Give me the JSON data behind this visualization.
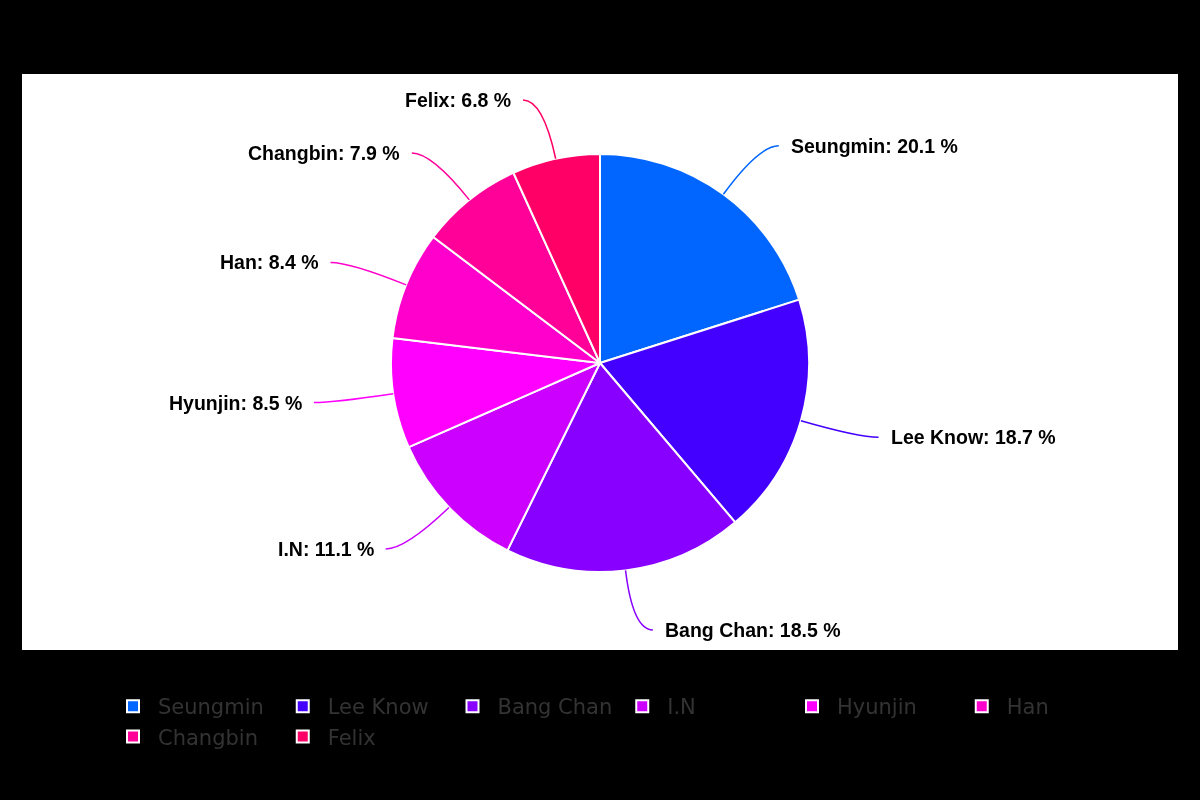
{
  "chart_data": {
    "type": "pie",
    "categories": [
      "Seungmin",
      "Lee Know",
      "Bang Chan",
      "I.N",
      "Hyunjin",
      "Han",
      "Changbin",
      "Felix"
    ],
    "values": [
      20.1,
      18.7,
      18.5,
      11.1,
      8.5,
      8.4,
      7.9,
      6.8
    ],
    "colors": [
      "#0066ff",
      "#4400ff",
      "#8800ff",
      "#cc00ff",
      "#ff00ff",
      "#ff00cc",
      "#ff0099",
      "#ff0066"
    ],
    "value_labels": [
      "Seungmin: 20.1 %",
      "Lee Know: 18.7 %",
      "Bang Chan: 18.5 %",
      "I.N: 11.1 %",
      "Hyunjin: 8.5 %",
      "Han: 8.4 %",
      "Changbin: 7.9 %",
      "Felix: 6.8 %"
    ],
    "legend": "bottom"
  }
}
